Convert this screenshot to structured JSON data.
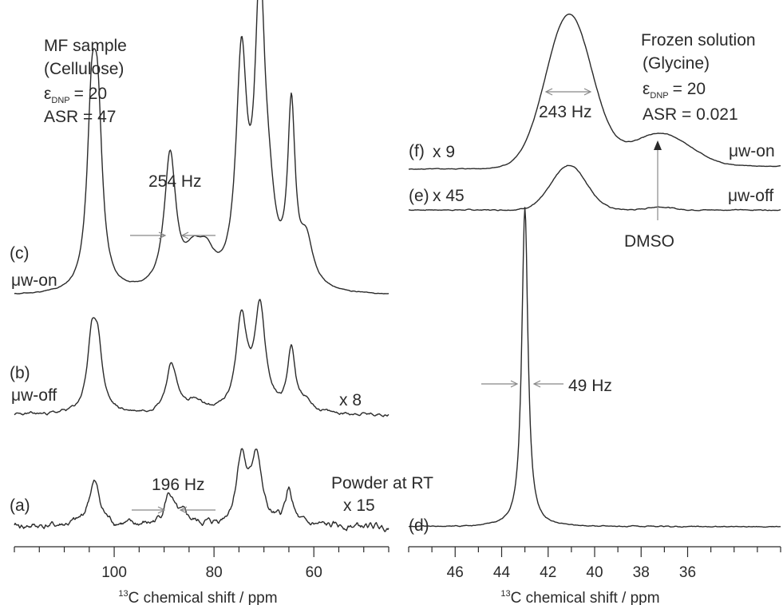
{
  "chart_data": [
    {
      "type": "line",
      "title": "",
      "xlabel_sup": "13",
      "xlabel": "C chemical shift / ppm",
      "xlim": [
        120,
        45
      ],
      "x_ticks": [
        100,
        80,
        60
      ],
      "x_minor_step": 5,
      "annotation": {
        "sample": "MF sample",
        "compound": "(Cellulose)",
        "eps_symbol": "ε",
        "eps_sub": "DNP",
        "eps_value": "= 20",
        "asr": "ASR = 47"
      },
      "series": [
        {
          "id": "c",
          "label": "(c)",
          "condition": "μw-on",
          "width_label": "254 Hz",
          "peaks": [
            [
              104.5,
              0.73,
              1.1
            ],
            [
              103.3,
              0.7,
              1.1
            ],
            [
              88.8,
              0.6,
              1.4
            ],
            [
              84.0,
              0.14,
              2.2
            ],
            [
              81.5,
              0.12,
              2.0
            ],
            [
              74.5,
              1.0,
              1.3
            ],
            [
              70.8,
              1.27,
              1.2
            ],
            [
              69.0,
              0.25,
              1.5
            ],
            [
              64.5,
              0.78,
              0.9
            ],
            [
              61.5,
              0.2,
              1.6
            ]
          ]
        },
        {
          "id": "b",
          "label": "(b)",
          "condition": "μw-off",
          "scale": "x 8",
          "peaks": [
            [
              104.5,
              0.5,
              1.1
            ],
            [
              103.3,
              0.48,
              1.1
            ],
            [
              88.5,
              0.38,
              1.3
            ],
            [
              84.0,
              0.08,
              2.0
            ],
            [
              74.5,
              0.72,
              1.3
            ],
            [
              70.8,
              0.82,
              1.3
            ],
            [
              64.5,
              0.5,
              0.9
            ],
            [
              61.5,
              0.08,
              1.5
            ]
          ]
        },
        {
          "id": "a",
          "label": "(a)",
          "sample_label": "Powder at RT",
          "scale": "x 15",
          "width_label": "196 Hz",
          "peaks": [
            [
              104.0,
              0.5,
              1.4
            ],
            [
              89.0,
              0.35,
              1.2
            ],
            [
              86.0,
              0.1,
              1.5
            ],
            [
              74.5,
              0.78,
              1.2
            ],
            [
              71.5,
              0.8,
              1.2
            ],
            [
              65.0,
              0.4,
              0.9
            ]
          ]
        }
      ]
    },
    {
      "type": "line",
      "title": "",
      "xlabel_sup": "13",
      "xlabel": "C chemical shift / ppm",
      "xlim": [
        48,
        32
      ],
      "x_ticks": [
        46,
        44,
        42,
        40,
        38,
        36
      ],
      "x_minor_step": 1,
      "annotation": {
        "sample": "Frozen solution",
        "compound": "(Glycine)",
        "eps_symbol": "ε",
        "eps_sub": "DNP",
        "eps_value": "= 20",
        "asr": "ASR = 0.021",
        "dmso": "DMSO"
      },
      "series": [
        {
          "id": "f",
          "label": "(f)",
          "condition": "μw-on",
          "scale": "x 9",
          "width_label": "243 Hz",
          "peaks": [
            [
              41.1,
              1.0,
              1.0
            ],
            [
              37.2,
              0.22,
              1.3
            ]
          ]
        },
        {
          "id": "e",
          "label": "(e)",
          "condition": "μw-off",
          "scale": "x 45",
          "peaks": [
            [
              41.1,
              1.0,
              0.75
            ],
            [
              37.2,
              0.07,
              0.5
            ]
          ]
        },
        {
          "id": "d",
          "label": "(d)",
          "width_label": "49 Hz",
          "peaks": [
            [
              43.0,
              1.0,
              0.16
            ]
          ]
        }
      ]
    }
  ]
}
